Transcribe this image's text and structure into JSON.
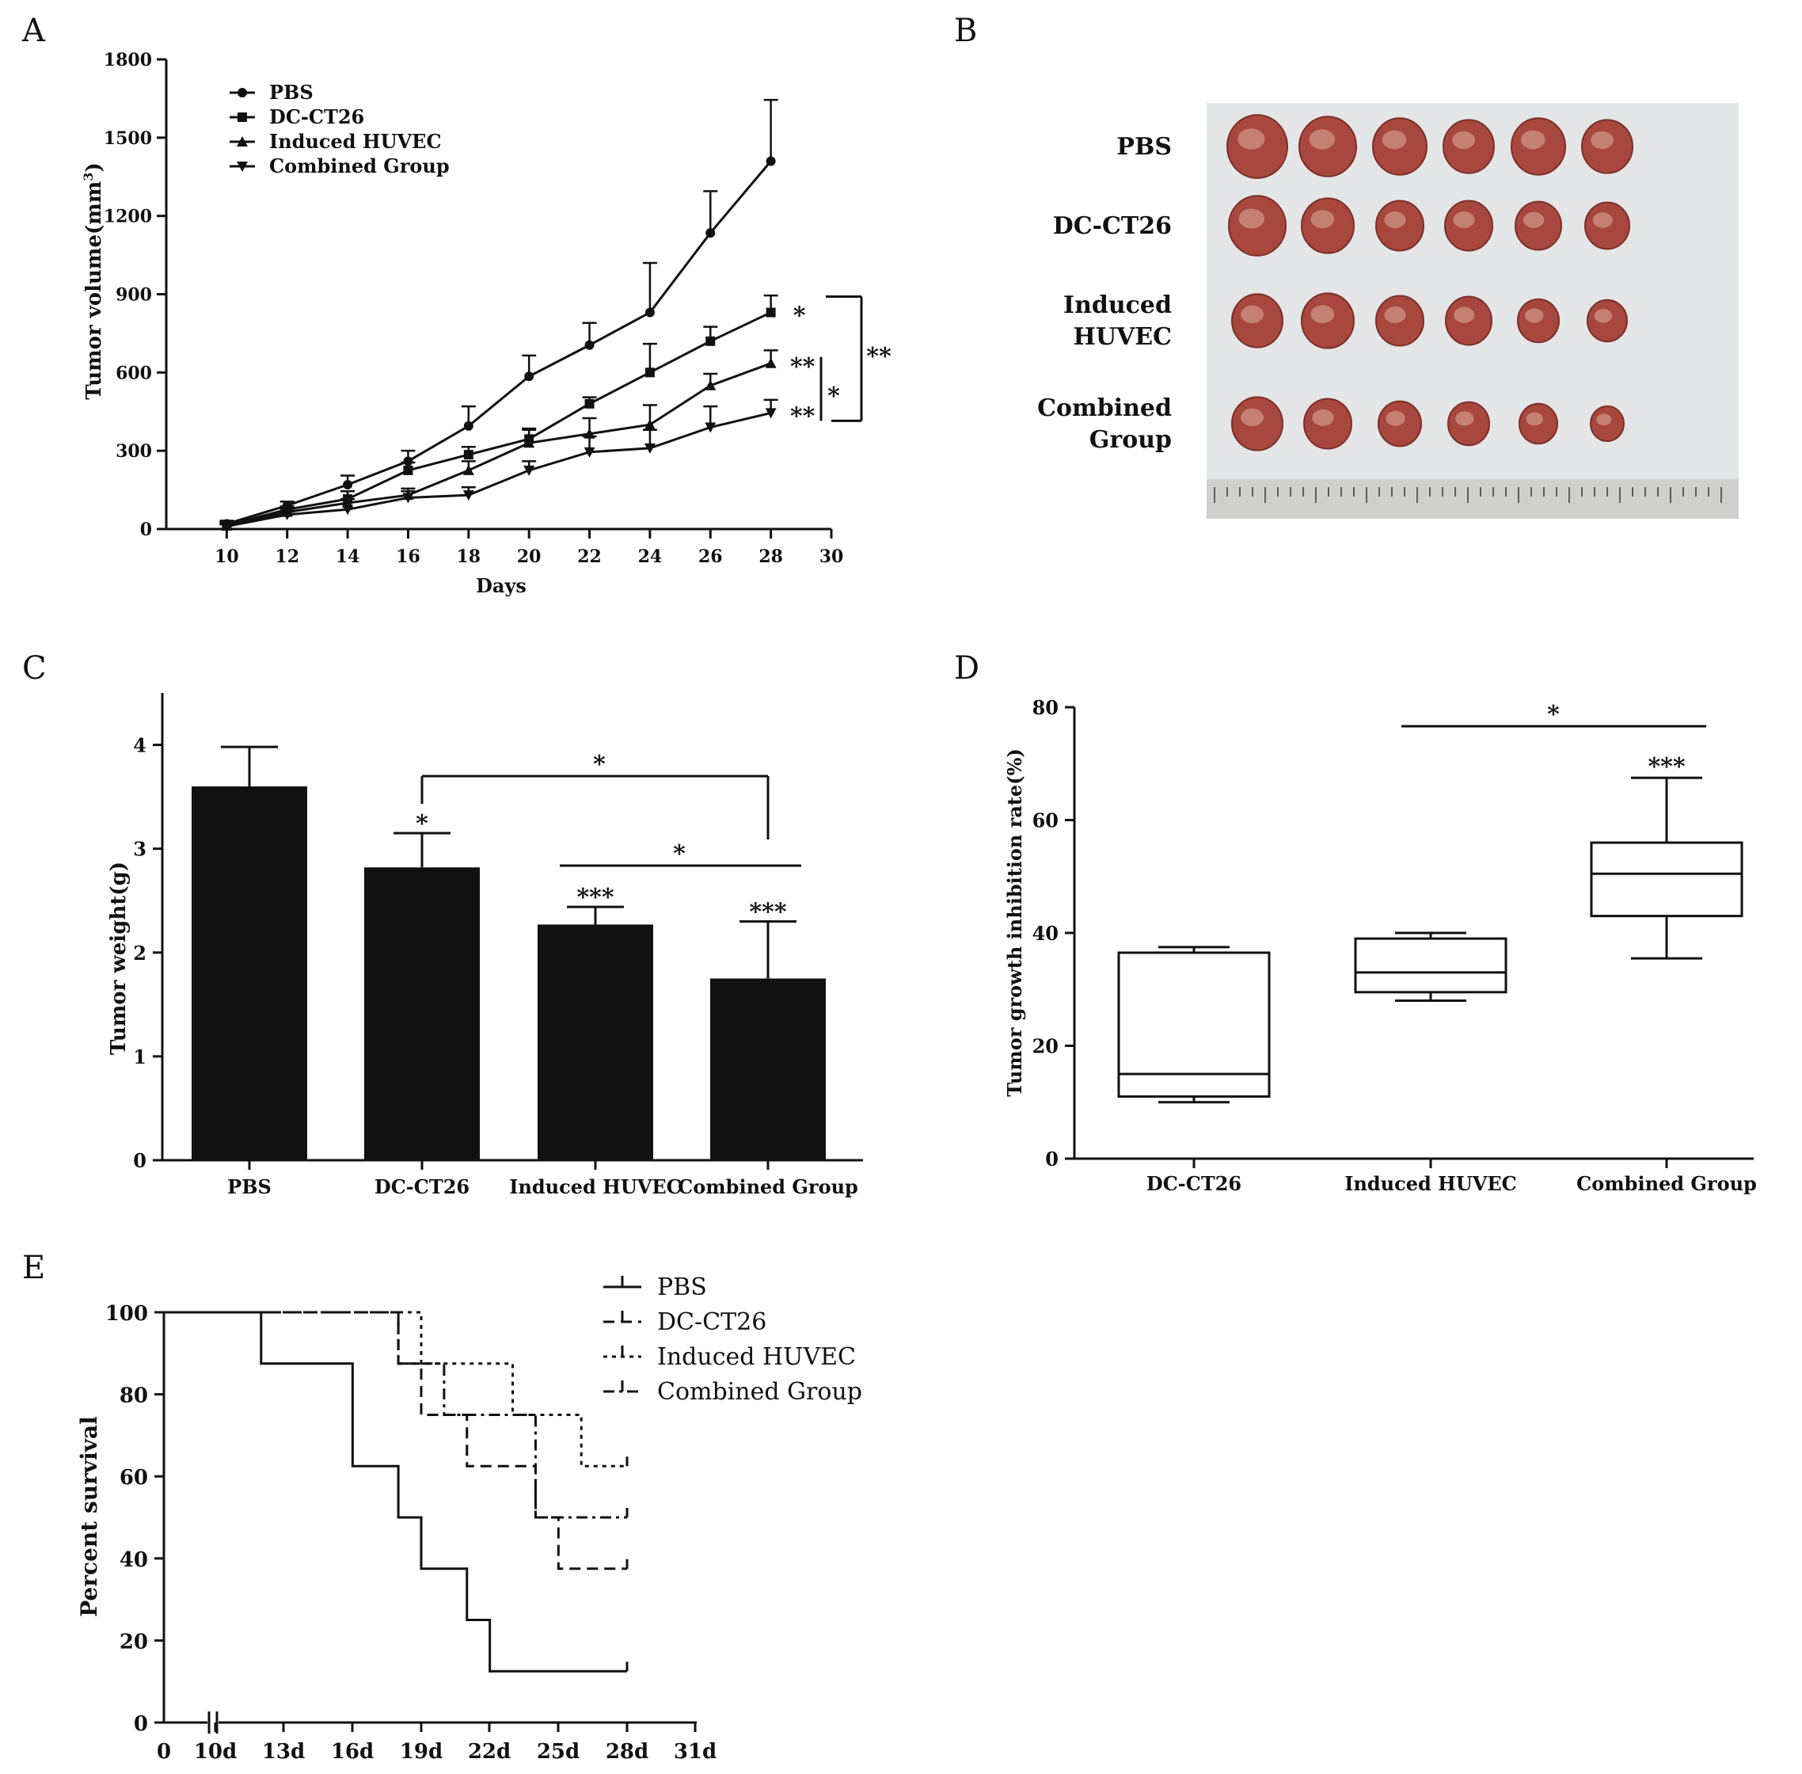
{
  "chart_data": [
    {
      "panel": "A",
      "type": "line",
      "xlabel": "Days",
      "ylabel": "Tumor volume(mm",
      "ylabel_sup": "3",
      "ylabel_close": ")",
      "xlim": [
        8,
        30
      ],
      "ylim": [
        0,
        1800
      ],
      "xticks": [
        10,
        12,
        14,
        16,
        18,
        20,
        22,
        24,
        26,
        28,
        30
      ],
      "yticks": [
        0,
        300,
        600,
        900,
        1200,
        1500,
        1800
      ],
      "legend": [
        "PBS",
        "DC-CT26",
        "Induced HUVEC",
        "Combined Group"
      ],
      "x": [
        10,
        12,
        14,
        16,
        18,
        20,
        22,
        24,
        26,
        28
      ],
      "series": [
        {
          "name": "PBS",
          "marker": "circle",
          "values": [
            20,
            90,
            170,
            260,
            395,
            585,
            705,
            830,
            1135,
            1410
          ],
          "errors": [
            12,
            15,
            35,
            40,
            75,
            80,
            85,
            190,
            160,
            235
          ]
        },
        {
          "name": "DC-CT26",
          "marker": "square",
          "values": [
            15,
            75,
            115,
            225,
            285,
            345,
            480,
            600,
            720,
            830
          ],
          "errors": [
            10,
            12,
            30,
            30,
            30,
            40,
            25,
            110,
            55,
            65
          ]
        },
        {
          "name": "Induced HUVEC",
          "marker": "triangle",
          "values": [
            12,
            65,
            100,
            130,
            225,
            330,
            365,
            400,
            550,
            635
          ],
          "errors": [
            10,
            12,
            45,
            25,
            35,
            50,
            60,
            75,
            45,
            50
          ]
        },
        {
          "name": "Combined Group",
          "marker": "inverted-triangle",
          "values": [
            10,
            55,
            75,
            120,
            130,
            225,
            295,
            310,
            390,
            445
          ],
          "errors": [
            8,
            12,
            40,
            25,
            30,
            35,
            60,
            70,
            80,
            50
          ]
        }
      ],
      "annotations": [
        "*",
        "**",
        "**",
        "*",
        "**"
      ]
    },
    {
      "panel": "C",
      "type": "bar",
      "ylabel": "Tumor weight(g)",
      "ylim": [
        0,
        4.5
      ],
      "yticks": [
        0,
        1,
        2,
        3,
        4
      ],
      "categories": [
        "PBS",
        "DC-CT26",
        "Induced HUVEC",
        "Combined Group"
      ],
      "values": [
        3.6,
        2.82,
        2.27,
        1.75
      ],
      "errors": [
        0.38,
        0.33,
        0.17,
        0.55
      ],
      "bar_labels": [
        "",
        "*",
        "***",
        "***"
      ],
      "brackets": [
        "*",
        "*"
      ]
    },
    {
      "panel": "D",
      "type": "box",
      "ylabel": "Tumor growth inhibition rate(%)",
      "ylim": [
        0,
        80
      ],
      "yticks": [
        0,
        20,
        40,
        60,
        80
      ],
      "categories": [
        "DC-CT26",
        "Induced HUVEC",
        "Combined Group"
      ],
      "boxes": [
        {
          "min": 10,
          "q1": 11,
          "median": 15,
          "q3": 36.5,
          "max": 37.5
        },
        {
          "min": 28,
          "q1": 29.5,
          "median": 33,
          "q3": 39,
          "max": 40
        },
        {
          "min": 35.5,
          "q1": 43,
          "median": 50.5,
          "q3": 56,
          "max": 67.5
        }
      ],
      "box_labels": [
        "",
        "",
        "***"
      ],
      "bracket": "*"
    },
    {
      "panel": "E",
      "type": "line",
      "subtype": "kaplan-meier",
      "ylabel": "Percent survival",
      "ylim": [
        0,
        100
      ],
      "yticks": [
        0,
        20,
        40,
        60,
        80,
        100
      ],
      "xticks": [
        "0",
        "10d",
        "13d",
        "16d",
        "19d",
        "22d",
        "25d",
        "28d",
        "31d"
      ],
      "legend": [
        "PBS",
        "DC-CT26",
        "Induced HUVEC",
        "Combined Group"
      ],
      "series": [
        {
          "name": "PBS",
          "line": "solid",
          "x": [
            10,
            12,
            16,
            18,
            19,
            21,
            22,
            28
          ],
          "y": [
            100,
            87.5,
            62.5,
            50,
            37.5,
            25,
            12.5,
            12.5
          ]
        },
        {
          "name": "DC-CT26",
          "line": "dashed",
          "x": [
            10,
            18,
            19,
            21,
            24,
            25,
            28
          ],
          "y": [
            100,
            87.5,
            75,
            62.5,
            50,
            37.5,
            37.5
          ]
        },
        {
          "name": "Induced HUVEC",
          "line": "dotted",
          "x": [
            10,
            19,
            23,
            26,
            28
          ],
          "y": [
            100,
            87.5,
            75,
            62.5,
            62.5
          ]
        },
        {
          "name": "Combined Group",
          "line": "dashdot",
          "x": [
            10,
            18,
            20,
            24,
            28
          ],
          "y": [
            100,
            87.5,
            75,
            50,
            50
          ]
        }
      ]
    }
  ],
  "panel_labels": {
    "A": "A",
    "B": "B",
    "C": "C",
    "D": "D",
    "E": "E"
  },
  "photo": {
    "rows": [
      "PBS",
      "DC-CT26",
      "Induced HUVEC",
      "Combined Group"
    ],
    "row_lines": [
      [
        "PBS"
      ],
      [
        "DC-CT26"
      ],
      [
        "Induced",
        "HUVEC"
      ],
      [
        "Combined",
        "Group"
      ]
    ],
    "tumor_color": "#a8473e",
    "background_color": "#e4e5e7"
  },
  "colors": {
    "ink": "#111111",
    "bar": "#111111",
    "background": "#ffffff"
  }
}
